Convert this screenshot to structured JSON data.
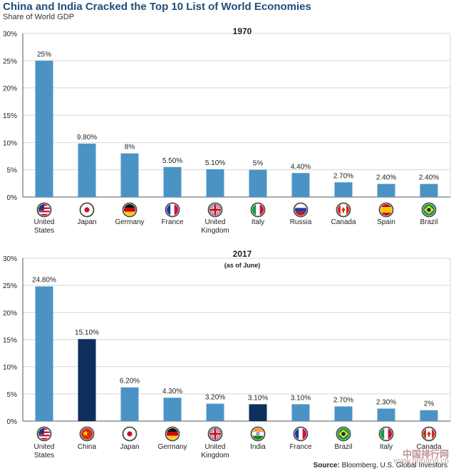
{
  "title": "China and India Cracked the Top 10 List of World Economies",
  "subtitle": "Share of World GDP",
  "source_label": "Source:",
  "source_text": "Bloomberg, U.S. Global Investors",
  "watermark": "中国排行网",
  "watermark_url": "www.phbang.cn",
  "colors": {
    "bar": "#4b93c4",
    "highlight": "#0d2f5e",
    "grid": "#d6d6d6",
    "axis": "#555555",
    "text": "#222222"
  },
  "chart_data": [
    {
      "type": "bar",
      "title": "1970",
      "subtitle": "",
      "ylim": [
        0,
        30
      ],
      "yticks": [
        0,
        5,
        10,
        15,
        20,
        25,
        30
      ],
      "ytick_labels": [
        "0%",
        "5%",
        "10%",
        "15%",
        "20%",
        "25%",
        "30%"
      ],
      "categories": [
        [
          "United",
          "States"
        ],
        [
          "Japan"
        ],
        [
          "Germany"
        ],
        [
          "France"
        ],
        [
          "United",
          "Kingdom"
        ],
        [
          "Italy"
        ],
        [
          "Russia"
        ],
        [
          "Canada"
        ],
        [
          "Spain"
        ],
        [
          "Brazil"
        ]
      ],
      "flags": [
        "us-flag-icon",
        "japan-flag-icon",
        "germany-flag-icon",
        "france-flag-icon",
        "uk-flag-icon",
        "italy-flag-icon",
        "russia-flag-icon",
        "canada-flag-icon",
        "spain-flag-icon",
        "brazil-flag-icon"
      ],
      "values": [
        25,
        9.8,
        8,
        5.5,
        5.1,
        5,
        4.4,
        2.7,
        2.4,
        2.4
      ],
      "labels": [
        "25%",
        "9.80%",
        "8%",
        "5.50%",
        "5.10%",
        "5%",
        "4.40%",
        "2.70%",
        "2.40%",
        "2.40%"
      ],
      "highlighted": []
    },
    {
      "type": "bar",
      "title": "2017",
      "subtitle": "(as of June)",
      "ylim": [
        0,
        30
      ],
      "yticks": [
        0,
        5,
        10,
        15,
        20,
        25,
        30
      ],
      "ytick_labels": [
        "0%",
        "5%",
        "10%",
        "15%",
        "20%",
        "25%",
        "30%"
      ],
      "categories": [
        [
          "United",
          "States"
        ],
        [
          "China"
        ],
        [
          "Japan"
        ],
        [
          "Germany"
        ],
        [
          "United",
          "Kingdom"
        ],
        [
          "India"
        ],
        [
          "France"
        ],
        [
          "Brazil"
        ],
        [
          "Italy"
        ],
        [
          "Canada"
        ]
      ],
      "flags": [
        "us-flag-icon",
        "china-flag-icon",
        "japan-flag-icon",
        "germany-flag-icon",
        "uk-flag-icon",
        "india-flag-icon",
        "france-flag-icon",
        "brazil-flag-icon",
        "italy-flag-icon",
        "canada-flag-icon"
      ],
      "values": [
        24.8,
        15.1,
        6.2,
        4.3,
        3.2,
        3.1,
        3.1,
        2.7,
        2.3,
        2
      ],
      "labels": [
        "24.80%",
        "15.10%",
        "6.20%",
        "4.30%",
        "3.20%",
        "3.10%",
        "3.10%",
        "2.70%",
        "2.30%",
        "2%"
      ],
      "highlighted": [
        1,
        5
      ]
    }
  ]
}
